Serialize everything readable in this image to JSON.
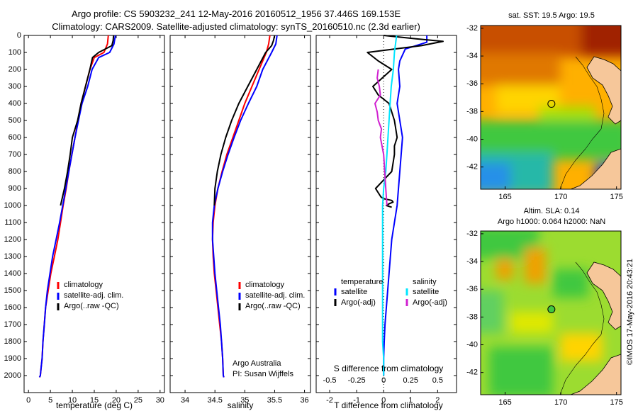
{
  "header": {
    "title_line1": "Argo profile: CS 5903232_241 12-May-2016 20160512_1956 37.446S 169.153E",
    "title_line2": "Climatology: CARS2009. Satellite-adjusted climatology: synTS_20160510.nc (2.3d earlier)"
  },
  "colors": {
    "climatology": "#ff0000",
    "satellite": "#0000ff",
    "argo": "#000000",
    "salinity_satellite": "#00e5ff",
    "salinity_argo": "#d020d0",
    "land": "#f6c79a"
  },
  "credits": {
    "line1": "Argo Australia",
    "line2": "PI: Susan Wijffels",
    "watermark": "©IMOS 17-May-2016 20:43:21"
  },
  "map_sst": {
    "title": "sat. SST: 19.5 Argo: 19.5",
    "xticks": [
      165,
      170,
      175
    ],
    "yticks": [
      -32,
      -34,
      -36,
      -38,
      -40,
      -42
    ],
    "xlim": [
      162.8,
      175.4
    ],
    "ylim": [
      -43.6,
      -31.8
    ],
    "float_lon": 169.153,
    "float_lat": -37.446
  },
  "map_sla": {
    "title_line1": "Altim. SLA: 0.14",
    "title_line2": "Argo h1000: 0.064 h2000: NaN",
    "xticks": [
      165,
      170,
      175
    ],
    "yticks": [
      -32,
      -34,
      -36,
      -38,
      -40,
      -42
    ],
    "xlim": [
      162.8,
      175.4
    ],
    "ylim": [
      -43.6,
      -31.8
    ],
    "float_lon": 169.153,
    "float_lat": -37.446
  },
  "chart_data": [
    {
      "type": "line",
      "panel": "temperature",
      "xlabel": "temperature (deg C)",
      "ylabel": "",
      "xlim": [
        -1,
        31
      ],
      "ylim": [
        2100,
        0
      ],
      "xticks": [
        0,
        5,
        10,
        15,
        20,
        25,
        30
      ],
      "yticks": [
        0,
        100,
        200,
        300,
        400,
        500,
        600,
        700,
        800,
        900,
        1000,
        1100,
        1200,
        1300,
        1400,
        1500,
        1600,
        1700,
        1800,
        1900,
        2000
      ],
      "legend_position": "middle-left",
      "series": [
        {
          "name": "climatology",
          "color": "#ff0000",
          "x": [
            18.2,
            18.0,
            17.2,
            15.0,
            14.0,
            13.0,
            12.0,
            11.3,
            10.6,
            9.9,
            9.2,
            8.6,
            7.9,
            7.3,
            6.7,
            5.9,
            5.1,
            4.5,
            3.9,
            3.6,
            3.3,
            3.1,
            2.9,
            2.7,
            2.5
          ],
          "y": [
            0,
            50,
            100,
            130,
            200,
            300,
            400,
            500,
            600,
            700,
            800,
            900,
            1000,
            1100,
            1200,
            1300,
            1400,
            1500,
            1600,
            1700,
            1800,
            1900,
            1950,
            2000,
            2010
          ]
        },
        {
          "name": "satellite-adj. clim.",
          "color": "#0000ff",
          "x": [
            19.8,
            19.5,
            18.5,
            16.0,
            14.5,
            13.5,
            12.2,
            11.4,
            10.6,
            9.9,
            9.2,
            8.5,
            7.8,
            7.1,
            6.3,
            5.5,
            4.9,
            4.3,
            3.9,
            3.6,
            3.3,
            3.1,
            2.9,
            2.7,
            2.5
          ],
          "y": [
            0,
            50,
            100,
            130,
            200,
            300,
            400,
            500,
            600,
            700,
            800,
            900,
            1000,
            1100,
            1200,
            1300,
            1400,
            1500,
            1600,
            1700,
            1800,
            1900,
            1950,
            2000,
            2010
          ]
        },
        {
          "name": "Argo(..raw -QC)",
          "color": "#000000",
          "x": [
            19.4,
            19.3,
            19.0,
            16.0,
            14.6,
            14.0,
            13.0,
            12.0,
            11.2,
            10.0,
            9.5,
            8.9,
            8.2,
            7.3
          ],
          "y": [
            0,
            30,
            60,
            100,
            130,
            200,
            300,
            400,
            500,
            600,
            700,
            800,
            900,
            1000
          ]
        }
      ]
    },
    {
      "type": "line",
      "panel": "salinity",
      "xlabel": "salinity",
      "ylabel": "",
      "xlim": [
        33.75,
        36.1
      ],
      "ylim": [
        2100,
        0
      ],
      "xticks": [
        34,
        34.5,
        35,
        35.5,
        36
      ],
      "legend_position": "middle-right",
      "series": [
        {
          "name": "climatology",
          "color": "#ff0000",
          "x": [
            35.42,
            35.4,
            35.36,
            35.24,
            35.12,
            35.0,
            34.9,
            34.8,
            34.7,
            34.62,
            34.55,
            34.5,
            34.47,
            34.46,
            34.47,
            34.49,
            34.52,
            34.55,
            34.58,
            34.61,
            34.63,
            34.64,
            34.65
          ],
          "y": [
            0,
            50,
            100,
            200,
            300,
            400,
            500,
            600,
            700,
            800,
            900,
            1000,
            1100,
            1200,
            1300,
            1400,
            1500,
            1600,
            1700,
            1800,
            1900,
            2000,
            2010
          ]
        },
        {
          "name": "satellite-adj. clim.",
          "color": "#0000ff",
          "x": [
            35.54,
            35.52,
            35.45,
            35.3,
            35.2,
            35.06,
            34.93,
            34.82,
            34.72,
            34.63,
            34.55,
            34.49,
            34.46,
            34.46,
            34.48,
            34.5,
            34.53,
            34.56,
            34.59,
            34.61,
            34.63,
            34.64,
            34.65
          ],
          "y": [
            0,
            50,
            100,
            200,
            300,
            400,
            500,
            600,
            700,
            800,
            900,
            1000,
            1100,
            1200,
            1300,
            1400,
            1500,
            1600,
            1700,
            1800,
            1900,
            2000,
            2010
          ]
        },
        {
          "name": "Argo(..raw -QC)",
          "color": "#000000",
          "x": [
            35.5,
            35.48,
            35.45,
            35.35,
            35.2,
            35.05,
            34.9,
            34.78,
            34.68,
            34.6,
            34.54,
            34.5,
            34.49
          ],
          "y": [
            0,
            30,
            60,
            100,
            200,
            300,
            400,
            500,
            600,
            700,
            800,
            900,
            1000
          ]
        }
      ]
    },
    {
      "type": "line",
      "panel": "difference",
      "xlabel": "T difference from climatology",
      "x2label": "S difference from climatology",
      "xlim": [
        -2.5,
        2.7
      ],
      "ylim": [
        2100,
        0
      ],
      "xticks": [
        -2,
        -1,
        0,
        1,
        2
      ],
      "x2ticks": [
        "-0.5",
        "-0.25",
        "0",
        "0.25",
        "0.5"
      ],
      "legend_position": "middle",
      "legend_headers": [
        "temperature",
        "salinity"
      ],
      "series": [
        {
          "name": "satellite",
          "group": "temperature",
          "color": "#0000ff",
          "x": [
            1.6,
            1.6,
            0.8,
            0.6,
            0.55,
            0.6,
            0.5,
            0.6,
            0.7,
            0.65,
            0.6,
            0.55,
            0.5,
            0.4,
            0.3,
            0.25,
            0.2,
            0.15,
            0.1,
            0.05,
            0.02,
            0.0,
            0.0
          ],
          "y": [
            0,
            40,
            80,
            150,
            200,
            300,
            400,
            500,
            600,
            700,
            800,
            900,
            1000,
            1100,
            1200,
            1300,
            1400,
            1500,
            1600,
            1700,
            1800,
            1900,
            2000
          ]
        },
        {
          "name": "Argo(-adj)",
          "group": "temperature",
          "color": "#000000",
          "x": [
            0.0,
            1.2,
            2.2,
            1.4,
            -0.6,
            -0.2,
            0.3,
            -0.4,
            -0.2,
            0.2,
            0.3,
            0.4,
            0.5,
            0.4,
            0.4,
            0.3,
            -0.3,
            -0.1,
            0.0,
            0.3,
            0.35,
            0.2,
            0.1,
            0.3
          ],
          "y": [
            0,
            20,
            35,
            60,
            100,
            150,
            200,
            300,
            350,
            400,
            450,
            500,
            600,
            650,
            700,
            800,
            900,
            950,
            960,
            970,
            980,
            990,
            1000,
            1010
          ]
        },
        {
          "name": "satellite",
          "group": "salinity",
          "color": "#00e5ff",
          "x": [
            0.12,
            0.1,
            0.09,
            0.07,
            0.06,
            0.05,
            0.04,
            0.03,
            0.02,
            0.0,
            -0.01,
            -0.01,
            -0.01,
            -0.01,
            -0.01,
            -0.01,
            -0.01,
            -0.01,
            -0.01,
            0.0,
            0.0
          ],
          "y": [
            0,
            100,
            200,
            300,
            400,
            500,
            600,
            700,
            800,
            900,
            1000,
            1100,
            1200,
            1300,
            1400,
            1500,
            1600,
            1700,
            1800,
            1900,
            2000
          ]
        },
        {
          "name": "Argo(-adj)",
          "group": "salinity",
          "color": "#d020d0",
          "x": [
            -0.05,
            -0.06,
            -0.04,
            -0.03,
            -0.08,
            -0.06,
            -0.05,
            -0.02,
            -0.03,
            0.0,
            0.01,
            0.02,
            0.03
          ],
          "y": [
            200,
            250,
            300,
            350,
            400,
            450,
            500,
            550,
            600,
            700,
            800,
            900,
            1000
          ]
        }
      ]
    }
  ]
}
